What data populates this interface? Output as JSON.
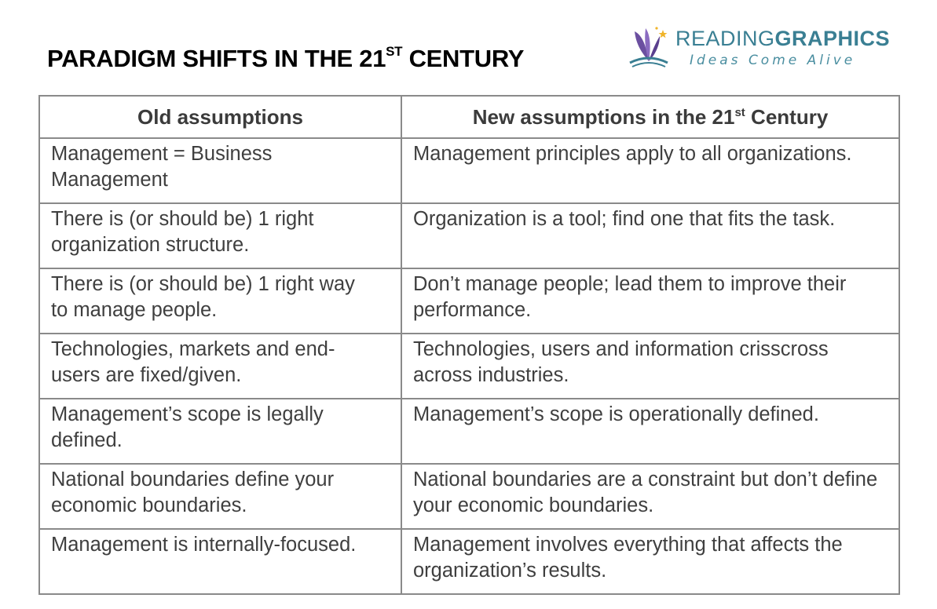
{
  "header": {
    "title_main": "PARADIGM SHIFTS IN THE 21",
    "title_sup": "ST",
    "title_end": " CENTURY"
  },
  "logo": {
    "name_light": "READING",
    "name_bold": "GRAPHICS",
    "tagline": "Ideas Come Alive",
    "icon": "book-butterfly-icon"
  },
  "table": {
    "col_old": "Old assumptions",
    "col_new_main": "New assumptions in the 21",
    "col_new_sup": "st",
    "col_new_end": " Century",
    "rows": [
      {
        "old": "Management = Business Management",
        "new": "Management principles apply to all organizations."
      },
      {
        "old": "There is (or should be) 1 right organization structure.",
        "new": "Organization is a tool; find one that fits the task."
      },
      {
        "old": "There is (or should be) 1 right way to manage people.",
        "new": "Don’t manage people; lead them to improve their performance."
      },
      {
        "old": "Technologies, markets and end-users are fixed/given.",
        "new": "Technologies, users and information crisscross across industries."
      },
      {
        "old": "Management’s scope is legally defined.",
        "new": "Management’s scope is operationally defined."
      },
      {
        "old": "National boundaries define your economic boundaries.",
        "new": "National boundaries are a constraint but don’t define your economic boundaries."
      },
      {
        "old": "Management is internally-focused.",
        "new": "Management involves everything that affects the organization’s results."
      }
    ]
  },
  "colors": {
    "brand_teal": "#3a7f93",
    "book_purple": "#6b4fa0",
    "border_gray": "#8a8a8a",
    "text_gray": "#3f3f3f"
  }
}
